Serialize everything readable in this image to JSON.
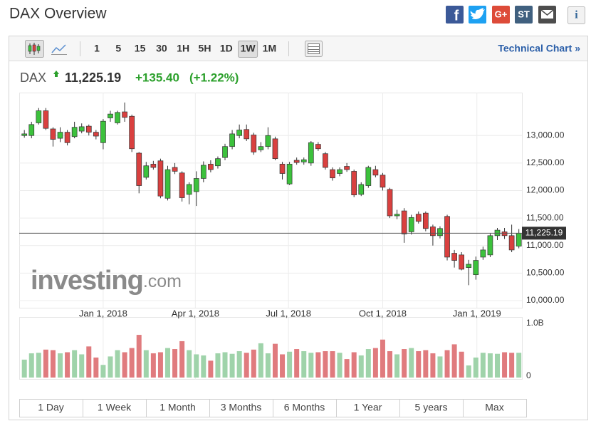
{
  "header": {
    "title": "DAX Overview",
    "share_icons": [
      "f",
      "G+",
      "ST",
      "i"
    ]
  },
  "toolbar": {
    "intervals": [
      "1",
      "5",
      "15",
      "30",
      "1H",
      "5H",
      "1D",
      "1W",
      "1M"
    ],
    "active_interval": 7,
    "technical_chart": "Technical Chart »"
  },
  "quote": {
    "symbol": "DAX",
    "change": "+135.40",
    "change_pct": "(+1.22%)",
    "change_color": "#2ca02c"
  },
  "chart_data": {
    "type": "candlestick",
    "x": [
      "2017-10-16",
      "2017-10-23",
      "2017-10-30",
      "2017-11-06",
      "2017-11-13",
      "2017-11-20",
      "2017-11-27",
      "2017-12-04",
      "2017-12-11",
      "2017-12-18",
      "2017-12-25",
      "2018-01-01",
      "2018-01-08",
      "2018-01-15",
      "2018-01-22",
      "2018-01-29",
      "2018-02-05",
      "2018-02-12",
      "2018-02-19",
      "2018-02-26",
      "2018-03-05",
      "2018-03-12",
      "2018-03-19",
      "2018-03-26",
      "2018-04-02",
      "2018-04-09",
      "2018-04-16",
      "2018-04-23",
      "2018-04-30",
      "2018-05-07",
      "2018-05-14",
      "2018-05-21",
      "2018-05-28",
      "2018-06-04",
      "2018-06-11",
      "2018-06-18",
      "2018-06-25",
      "2018-07-02",
      "2018-07-09",
      "2018-07-16",
      "2018-07-23",
      "2018-07-30",
      "2018-08-06",
      "2018-08-13",
      "2018-08-20",
      "2018-08-27",
      "2018-09-03",
      "2018-09-10",
      "2018-09-17",
      "2018-09-24",
      "2018-10-01",
      "2018-10-08",
      "2018-10-15",
      "2018-10-22",
      "2018-10-29",
      "2018-11-05",
      "2018-11-12",
      "2018-11-19",
      "2018-11-26",
      "2018-12-03",
      "2018-12-10",
      "2018-12-17",
      "2018-12-24",
      "2018-12-31",
      "2019-01-07",
      "2019-01-14",
      "2019-01-21",
      "2019-01-28",
      "2019-02-04",
      "2019-02-11"
    ],
    "open": [
      13000,
      13000,
      13230,
      13450,
      13120,
      12950,
      13060,
      12980,
      13080,
      13170,
      13060,
      12870,
      13320,
      13230,
      13430,
      13350,
      12680,
      12240,
      12480,
      12540,
      11860,
      12420,
      12320,
      11930,
      11980,
      12220,
      12480,
      12450,
      12600,
      12800,
      13000,
      13110,
      13010,
      12740,
      12800,
      12940,
      12480,
      12120,
      12550,
      12520,
      12500,
      12840,
      12670,
      12380,
      12310,
      12440,
      12350,
      11930,
      12090,
      12380,
      12280,
      12020,
      11540,
      11630,
      11250,
      11570,
      11590,
      11340,
      11180,
      11530,
      10860,
      10830,
      10600,
      10470,
      10790,
      10830,
      11180,
      11250,
      11180,
      10990
    ],
    "high": [
      13100,
      13250,
      13500,
      13500,
      13150,
      13150,
      13100,
      13250,
      13220,
      13200,
      13100,
      13300,
      13450,
      13450,
      13600,
      13380,
      12700,
      12520,
      12540,
      12580,
      12450,
      12500,
      12350,
      12150,
      12350,
      12530,
      12550,
      12620,
      12850,
      13100,
      13200,
      13200,
      13050,
      12880,
      13150,
      12980,
      12520,
      12520,
      12600,
      12600,
      12900,
      12880,
      12700,
      12420,
      12420,
      12500,
      12380,
      12150,
      12450,
      12450,
      12320,
      12050,
      11650,
      11680,
      11560,
      11620,
      11620,
      11380,
      11350,
      11560,
      10920,
      10880,
      10740,
      10800,
      10980,
      11220,
      11320,
      11320,
      11380,
      11300
    ],
    "low": [
      12960,
      12950,
      13200,
      13100,
      12800,
      12880,
      12820,
      12950,
      13040,
      13000,
      12930,
      12750,
      13250,
      13200,
      13250,
      12700,
      11950,
      12200,
      12380,
      11860,
      11820,
      12300,
      11800,
      11750,
      11720,
      12150,
      12330,
      12400,
      12550,
      12750,
      12950,
      12900,
      12650,
      12700,
      12750,
      12550,
      12200,
      12100,
      12470,
      12470,
      12450,
      12720,
      12380,
      12180,
      12260,
      12340,
      11880,
      11900,
      12050,
      12240,
      12000,
      11500,
      11480,
      11050,
      11200,
      11400,
      11260,
      11000,
      11130,
      10730,
      10600,
      10550,
      10280,
      10380,
      10740,
      10790,
      11100,
      11120,
      10880,
      10950
    ],
    "close": [
      13030,
      13200,
      13450,
      13130,
      12930,
      13060,
      12870,
      13150,
      13160,
      13060,
      12990,
      13260,
      13390,
      13420,
      13330,
      12760,
      12090,
      12450,
      12420,
      11900,
      12380,
      12350,
      11870,
      12110,
      12220,
      12460,
      12380,
      12580,
      12800,
      13030,
      13100,
      12940,
      12700,
      12800,
      13000,
      12580,
      12310,
      12480,
      12510,
      12560,
      12870,
      12760,
      12420,
      12230,
      12380,
      12380,
      11920,
      12110,
      12420,
      12280,
      12060,
      11540,
      11570,
      11210,
      11510,
      11440,
      11310,
      11180,
      11310,
      10790,
      10730,
      10570,
      10660,
      10730,
      10920,
      11180,
      11280,
      11180,
      10920,
      11225.19
    ],
    "volume": [
      340000000,
      460000000,
      470000000,
      530000000,
      520000000,
      460000000,
      480000000,
      520000000,
      440000000,
      590000000,
      380000000,
      240000000,
      400000000,
      520000000,
      480000000,
      560000000,
      810000000,
      520000000,
      460000000,
      480000000,
      560000000,
      540000000,
      690000000,
      520000000,
      440000000,
      420000000,
      320000000,
      460000000,
      480000000,
      450000000,
      500000000,
      470000000,
      530000000,
      650000000,
      460000000,
      640000000,
      440000000,
      490000000,
      540000000,
      500000000,
      470000000,
      480000000,
      500000000,
      500000000,
      470000000,
      350000000,
      480000000,
      420000000,
      540000000,
      560000000,
      720000000,
      500000000,
      440000000,
      540000000,
      560000000,
      500000000,
      520000000,
      460000000,
      400000000,
      520000000,
      630000000,
      490000000,
      230000000,
      380000000,
      470000000,
      460000000,
      450000000,
      480000000,
      470000000,
      470000000
    ],
    "xlim": [
      "2017-10-11",
      "2019-02-14"
    ],
    "xticks": [
      {
        "value": "2018-01-01",
        "label": "Jan 1, 2018"
      },
      {
        "value": "2018-04-01",
        "label": "Apr 1, 2018"
      },
      {
        "value": "2018-07-01",
        "label": "Jul 1, 2018"
      },
      {
        "value": "2018-10-01",
        "label": "Oct 1, 2018"
      },
      {
        "value": "2019-01-01",
        "label": "Jan 1, 2019"
      }
    ],
    "ylim": [
      9870,
      13780
    ],
    "yticks": [
      {
        "value": 10000,
        "label": "10,000.00"
      },
      {
        "value": 10500,
        "label": "10,500.00"
      },
      {
        "value": 11000,
        "label": "11,000.00"
      },
      {
        "value": 11500,
        "label": "11,500.00"
      },
      {
        "value": 12000,
        "label": "12,000.00"
      },
      {
        "value": 12500,
        "label": "12,500.00"
      },
      {
        "value": 13000,
        "label": "13,000.00"
      }
    ],
    "last_price": {
      "value": 11225.19,
      "label": "11,225.19"
    },
    "volume_ylim": [
      0,
      1000000000
    ],
    "volume_yticks": [
      {
        "value": 0,
        "label": "0"
      },
      {
        "value": 1000000000,
        "label": "1.0B"
      }
    ],
    "up_color": "#3cc13c",
    "down_color": "#d9403f",
    "volume_up_color": "#9fd3aa",
    "volume_down_color": "#e07b7e",
    "grid": true,
    "watermark": [
      "investing",
      ".com"
    ],
    "ranges": [
      "1 Day",
      "1 Week",
      "1 Month",
      "3 Months",
      "6 Months",
      "1 Year",
      "5 years",
      "Max"
    ]
  }
}
